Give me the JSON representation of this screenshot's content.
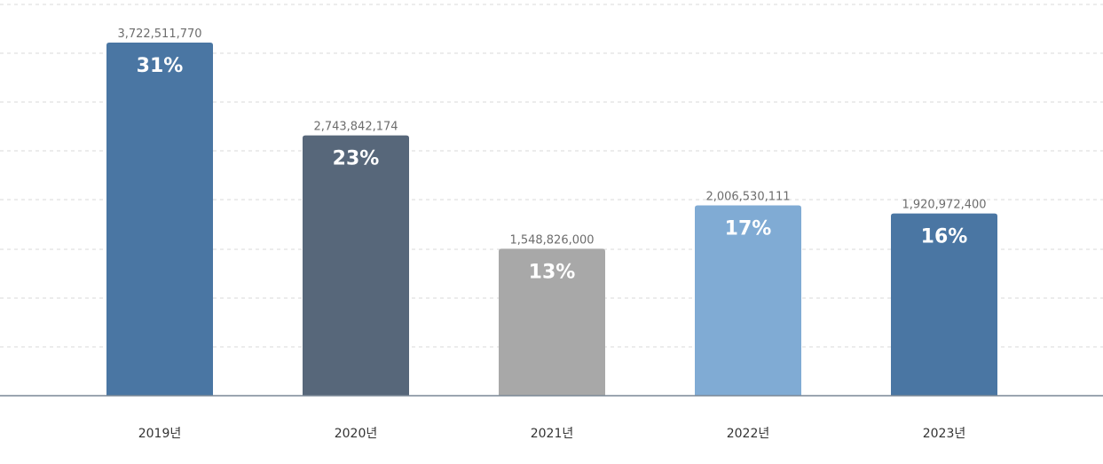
{
  "chart_data": {
    "type": "bar",
    "categories": [
      "2019년",
      "2020년",
      "2021년",
      "2022년",
      "2023년"
    ],
    "values": [
      3722511770,
      2743842174,
      1548826000,
      2006530111,
      1920972400
    ],
    "value_labels": [
      "3,722,511,770",
      "2,743,842,174",
      "1,548,826,000",
      "2,006,530,111",
      "1,920,972,400"
    ],
    "percent_labels": [
      "31%",
      "23%",
      "13%",
      "17%",
      "16%"
    ],
    "colors": [
      "#4a76a3",
      "#57677a",
      "#a8a8a8",
      "#80abd4",
      "#4a76a3"
    ],
    "ylim": [
      0,
      4300000000
    ],
    "grid": true,
    "title": "",
    "xlabel": "",
    "ylabel": ""
  }
}
